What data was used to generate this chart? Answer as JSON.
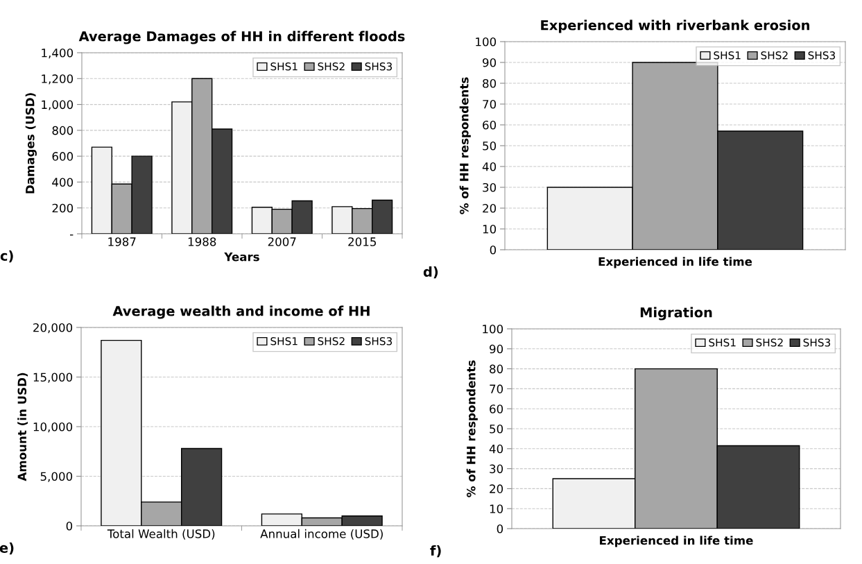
{
  "chart_data": [
    {
      "type": "bar",
      "title": "Average Damages of HH in different floods",
      "xlabel": "Years",
      "ylabel": "Damages (USD)",
      "categories": [
        "1987",
        "1988",
        "2007",
        "2015"
      ],
      "series": [
        {
          "name": "SHS1",
          "color": "#f0f0f0",
          "values": [
            670,
            1020,
            205,
            210
          ]
        },
        {
          "name": "SHS2",
          "color": "#a6a6a6",
          "values": [
            385,
            1200,
            190,
            195
          ]
        },
        {
          "name": "SHS3",
          "color": "#404040",
          "values": [
            600,
            810,
            255,
            260
          ]
        }
      ],
      "ylim": [
        0,
        1400
      ],
      "yticks": [
        {
          "value": 0,
          "label": "-"
        },
        200,
        400,
        600,
        800,
        {
          "value": 1000,
          "label": "1,000"
        },
        {
          "value": 1200,
          "label": "1,200"
        },
        {
          "value": 1400,
          "label": "1,400"
        }
      ],
      "grid": "y",
      "legend": "top right",
      "annotations": [
        "c)"
      ]
    },
    {
      "type": "bar",
      "title": "Experienced with riverbank erosion",
      "xlabel": "Experienced in life time",
      "ylabel": "% of HH respondents",
      "categories": [
        null
      ],
      "series": [
        {
          "name": "SHS1",
          "color": "#f0f0f0",
          "values": [
            30
          ]
        },
        {
          "name": "SHS2",
          "color": "#a6a6a6",
          "values": [
            90
          ]
        },
        {
          "name": "SHS3",
          "color": "#404040",
          "values": [
            57
          ]
        }
      ],
      "ylim": [
        0,
        100
      ],
      "yticks": [
        0,
        10,
        20,
        30,
        40,
        50,
        60,
        70,
        80,
        90,
        100
      ],
      "grid": "y",
      "legend": "top right",
      "annotations": [
        "d)"
      ]
    },
    {
      "type": "bar",
      "title": "Average wealth and income of HH",
      "ylabel": "Amount (in USD)",
      "categories": [
        "Total Wealth (USD)",
        "Annual income (USD)"
      ],
      "series": [
        {
          "name": "SHS1",
          "color": "#f0f0f0",
          "values": [
            18700,
            1200
          ]
        },
        {
          "name": "SHS2",
          "color": "#a6a6a6",
          "values": [
            2400,
            800
          ]
        },
        {
          "name": "SHS3",
          "color": "#404040",
          "values": [
            7800,
            1000
          ]
        }
      ],
      "ylim": [
        0,
        20000
      ],
      "yticks": [
        0,
        {
          "value": 5000,
          "label": "5,000"
        },
        {
          "value": 10000,
          "label": "10,000"
        },
        {
          "value": 15000,
          "label": "15,000"
        },
        {
          "value": 20000,
          "label": "20,000"
        }
      ],
      "grid": "y",
      "legend": "top right",
      "annotations": [
        "e)"
      ]
    },
    {
      "type": "bar",
      "title": "Migration",
      "xlabel": "Experienced in life time",
      "ylabel": "% of HH respondents",
      "categories": [
        null
      ],
      "series": [
        {
          "name": "SHS1",
          "color": "#f0f0f0",
          "values": [
            25
          ]
        },
        {
          "name": "SHS2",
          "color": "#a6a6a6",
          "values": [
            80
          ]
        },
        {
          "name": "SHS3",
          "color": "#404040",
          "values": [
            41.5
          ]
        }
      ],
      "ylim": [
        0,
        100
      ],
      "yticks": [
        0,
        10,
        20,
        30,
        40,
        50,
        60,
        70,
        80,
        90,
        100
      ],
      "grid": "y",
      "legend": "top right",
      "annotations": [
        "f)"
      ]
    }
  ]
}
